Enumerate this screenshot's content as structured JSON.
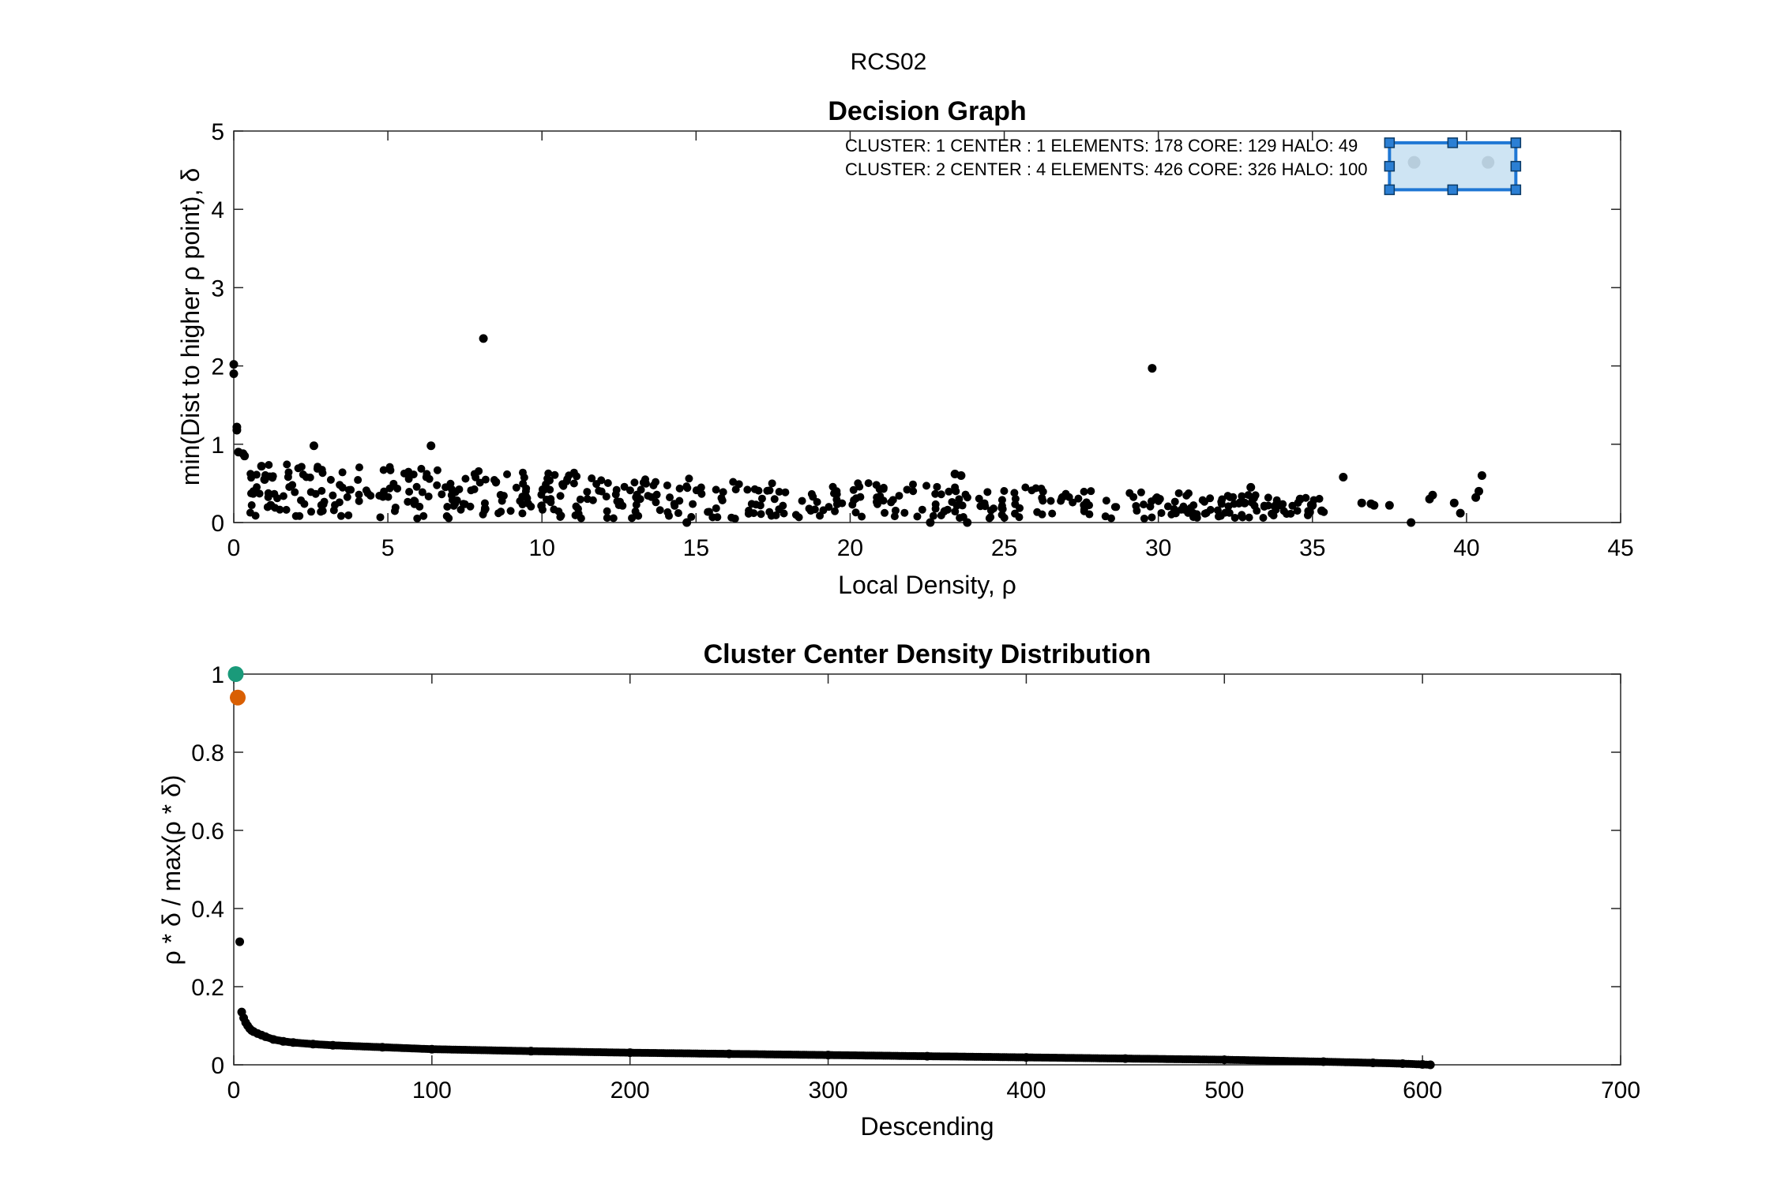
{
  "figure": {
    "suptitle": "RCS02"
  },
  "chart_data": [
    {
      "type": "scatter",
      "title": "Decision Graph",
      "xlabel": "Local Density, ρ",
      "ylabel": "min(Dist to higher ρ point), δ",
      "xlim": [
        0,
        45
      ],
      "ylim": [
        0,
        5
      ],
      "xticks": [
        0,
        5,
        10,
        15,
        20,
        25,
        30,
        35,
        40,
        45
      ],
      "yticks": [
        0,
        1,
        2,
        3,
        4,
        5
      ],
      "grid": false,
      "annotations": [
        "CLUSTER: 1 CENTER : 1 ELEMENTS: 178 CORE: 129 HALO: 49",
        "CLUSTER: 2 CENTER : 4 ELEMENTS: 426 CORE: 326 HALO: 100"
      ],
      "selection_box": {
        "x_range": [
          37.5,
          41.6
        ],
        "y_range": [
          4.25,
          4.85
        ],
        "fill": "#c6dff1",
        "edge": "#1f77d4"
      },
      "series": [
        {
          "color": "#000000",
          "points": [
            [
              0.0,
              2.02
            ],
            [
              0.0,
              1.9
            ],
            [
              0.1,
              1.22
            ],
            [
              0.1,
              1.18
            ],
            [
              0.15,
              0.9
            ],
            [
              0.3,
              0.88
            ],
            [
              0.35,
              0.85
            ],
            [
              8.1,
              2.35
            ],
            [
              29.8,
              1.97
            ],
            [
              6.4,
              0.98
            ],
            [
              2.6,
              0.98
            ],
            [
              36.0,
              0.58
            ],
            [
              40.5,
              0.6
            ],
            [
              23.4,
              0.62
            ],
            [
              23.6,
              0.6
            ],
            [
              40.4,
              0.4
            ],
            [
              40.3,
              0.32
            ],
            [
              39.6,
              0.25
            ],
            [
              38.8,
              0.3
            ],
            [
              38.9,
              0.35
            ],
            [
              39.8,
              0.12
            ],
            [
              38.2,
              0.0
            ],
            [
              37.0,
              0.22
            ],
            [
              36.6,
              0.25
            ],
            [
              36.9,
              0.24
            ],
            [
              37.5,
              0.22
            ],
            [
              14.7,
              0.0
            ],
            [
              22.6,
              0.0
            ],
            [
              23.8,
              0.0
            ],
            [
              1.2,
              0.22
            ],
            [
              1.0,
              0.55
            ],
            [
              0.9,
              0.72
            ],
            [
              34.6,
              0.3
            ],
            [
              35.0,
              0.22
            ],
            [
              35.3,
              0.15
            ],
            [
              33.0,
              0.45
            ],
            [
              32.8,
              0.25
            ]
          ]
        },
        {
          "name": "cluster 1 center",
          "color": "#666666",
          "points": [
            [
              38.3,
              4.6
            ]
          ]
        },
        {
          "name": "cluster 2 center",
          "color": "#666666",
          "points": [
            [
              40.7,
              4.6
            ]
          ]
        }
      ],
      "dense_band": {
        "x_range": [
          0.5,
          35.5
        ],
        "y_upper_start": 0.78,
        "y_upper_end": 0.32,
        "y_lower": 0.05,
        "n": 520,
        "color": "#000000"
      }
    },
    {
      "type": "scatter",
      "title": "Cluster Center Density Distribution",
      "xlabel": "Descending",
      "ylabel": "ρ * δ / max(ρ * δ)",
      "xlim": [
        0,
        700
      ],
      "ylim": [
        0,
        1
      ],
      "xticks": [
        0,
        100,
        200,
        300,
        400,
        500,
        600,
        700
      ],
      "yticks": [
        0,
        0.2,
        0.4,
        0.6,
        0.8,
        1
      ],
      "ytick_labels": [
        "0",
        "0.2",
        "0.4",
        "0.6",
        "0.8",
        "1"
      ],
      "grid": false,
      "series": [
        {
          "name": "cluster 1 center",
          "color": "#1a9a7a",
          "points": [
            [
              1,
              1.0
            ]
          ]
        },
        {
          "name": "cluster 2 center",
          "color": "#d95f02",
          "points": [
            [
              2,
              0.94
            ]
          ]
        },
        {
          "color": "#000000",
          "points": [
            [
              3,
              0.315
            ],
            [
              4,
              0.135
            ],
            [
              5,
              0.12
            ],
            [
              6,
              0.108
            ],
            [
              7,
              0.1
            ],
            [
              8,
              0.093
            ],
            [
              9,
              0.088
            ],
            [
              10,
              0.085
            ],
            [
              12,
              0.08
            ],
            [
              14,
              0.076
            ],
            [
              16,
              0.072
            ],
            [
              20,
              0.065
            ],
            [
              25,
              0.06
            ],
            [
              30,
              0.057
            ],
            [
              40,
              0.053
            ],
            [
              50,
              0.05
            ],
            [
              75,
              0.045
            ],
            [
              100,
              0.04
            ],
            [
              150,
              0.035
            ],
            [
              200,
              0.031
            ],
            [
              250,
              0.028
            ],
            [
              300,
              0.025
            ],
            [
              350,
              0.022
            ],
            [
              400,
              0.019
            ],
            [
              450,
              0.016
            ],
            [
              500,
              0.013
            ],
            [
              550,
              0.008
            ],
            [
              575,
              0.005
            ],
            [
              590,
              0.003
            ],
            [
              600,
              0.001
            ],
            [
              604,
              0.0
            ]
          ]
        }
      ]
    }
  ]
}
